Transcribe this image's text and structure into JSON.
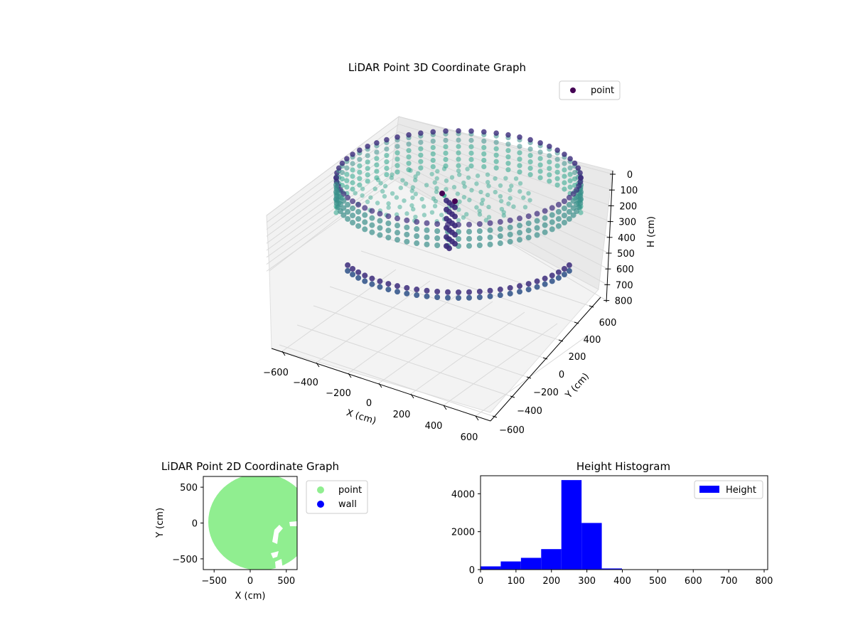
{
  "figure": {
    "title_3d": "LiDAR Point 3D Coordinate Graph",
    "title_2d": "LiDAR Point 2D Coordinate Graph",
    "title_hist": "Height Histogram"
  },
  "colors": {
    "point_legend": "#440154",
    "point_2d": "#90ee90",
    "wall_2d": "#0000ff",
    "hist_bar": "#0000ff",
    "viridis_dark": "#3b2a7a",
    "viridis_mid": "#3a8f8a",
    "viridis_teal": "#2aa58a"
  },
  "chart_data": [
    {
      "type": "scatter",
      "id": "lidar-3d",
      "title": "LiDAR Point 3D Coordinate Graph",
      "xlabel": "X (cm)",
      "ylabel": "Y (cm)",
      "zlabel": "H (cm)",
      "xticks": [
        "−600",
        "−400",
        "−200",
        "0",
        "200",
        "400",
        "600"
      ],
      "yticks": [
        "−600",
        "−400",
        "−200",
        "0",
        "200",
        "400",
        "600"
      ],
      "zticks": [
        "0",
        "100",
        "200",
        "300",
        "400",
        "500",
        "600",
        "700",
        "800"
      ],
      "xlim": [
        -650,
        650
      ],
      "ylim": [
        -650,
        650
      ],
      "zlim": [
        0,
        800
      ],
      "z_inverted": true,
      "legend": [
        "point"
      ],
      "legend_position": "upper-right",
      "shape": "cylindrical wall of radius ~600 cm spanning H ≈ 100–700 cm, points colored by height (viridis), with a cluster of points near the center",
      "grid": true
    },
    {
      "type": "scatter",
      "id": "lidar-2d",
      "title": "LiDAR Point 2D Coordinate Graph",
      "xlabel": "X (cm)",
      "ylabel": "Y (cm)",
      "xticks": [
        "−500",
        "0",
        "500"
      ],
      "yticks": [
        "500",
        "0",
        "−500"
      ],
      "xlim": [
        -650,
        650
      ],
      "ylim": [
        -650,
        650
      ],
      "series": [
        {
          "name": "point",
          "color": "#90ee90",
          "shape": "filled disc, radius ~600 cm centred near (150, 0)"
        },
        {
          "name": "wall",
          "color": "#0000ff",
          "shape": "no visible points"
        }
      ],
      "legend_position": "outside-right"
    },
    {
      "type": "bar",
      "id": "height-histogram",
      "title": "Height Histogram",
      "xlabel": "",
      "ylabel": "",
      "bin_edges": [
        0,
        57,
        114,
        171,
        228,
        285,
        342,
        399,
        456,
        513,
        570,
        627,
        684,
        741,
        798
      ],
      "values": [
        170,
        430,
        620,
        1080,
        4720,
        2460,
        60,
        0,
        0,
        0,
        0,
        0,
        0,
        0
      ],
      "xticks": [
        "0",
        "100",
        "200",
        "300",
        "400",
        "500",
        "600",
        "700",
        "800"
      ],
      "yticks": [
        "0",
        "2000",
        "4000"
      ],
      "xlim": [
        0,
        810
      ],
      "ylim": [
        0,
        4950
      ],
      "series": [
        {
          "name": "Height",
          "color": "#0000ff"
        }
      ],
      "legend_position": "upper-right"
    }
  ]
}
